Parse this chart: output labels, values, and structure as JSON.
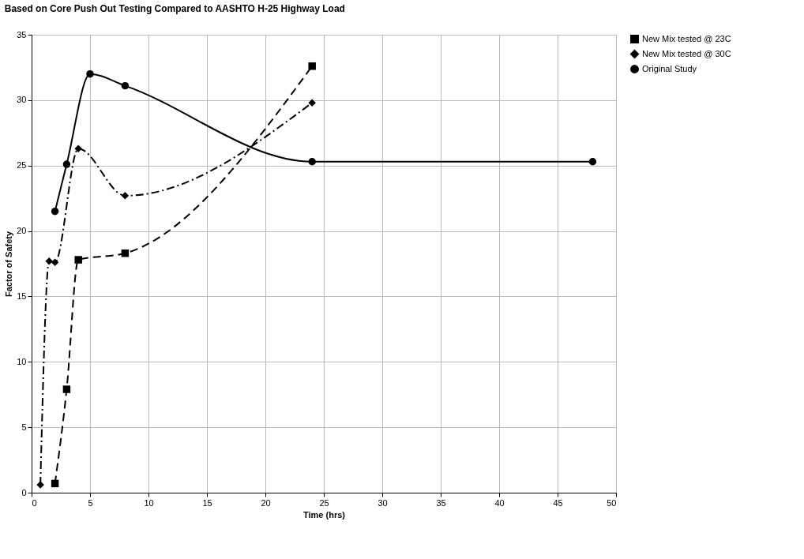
{
  "chart_data": {
    "type": "line",
    "title": "Based on Core Push Out Testing Compared to AASHTO H-25 Highway Load",
    "xlabel": "Time (hrs)",
    "ylabel": "Factor of Safety",
    "xlim": [
      0,
      50
    ],
    "xticks": [
      0,
      5,
      10,
      15,
      20,
      25,
      30,
      35,
      40,
      45,
      50
    ],
    "ylim": [
      0,
      35
    ],
    "yticks": [
      0,
      5,
      10,
      15,
      20,
      25,
      30,
      35
    ],
    "grid": true,
    "legend": "right",
    "series": [
      {
        "name": "New Mix tested @ 23C",
        "color": "#000000",
        "marker": "square",
        "line_style": "dashed",
        "x": [
          2,
          3,
          4,
          8,
          24
        ],
        "values": [
          0.7,
          7.9,
          17.8,
          18.3,
          32.6
        ]
      },
      {
        "name": "New Mix tested @ 30C",
        "color": "#000000",
        "marker": "diamond",
        "line_style": "dashdot",
        "x": [
          0.75,
          1.5,
          2,
          4,
          8,
          24
        ],
        "values": [
          0.6,
          17.7,
          17.6,
          26.3,
          22.7,
          29.8
        ]
      },
      {
        "name": "Original Study",
        "color": "#000000",
        "marker": "circle",
        "line_style": "solid",
        "x": [
          2,
          3,
          5,
          8,
          24,
          48
        ],
        "values": [
          21.5,
          25.1,
          32.0,
          31.1,
          25.3,
          25.3
        ]
      }
    ]
  }
}
